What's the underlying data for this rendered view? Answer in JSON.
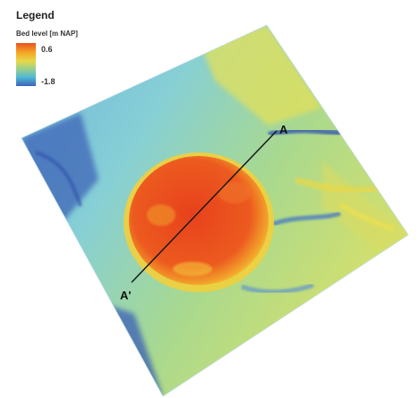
{
  "legend": {
    "title": "Legend",
    "subtitle": "Bed level [m NAP]",
    "max_label": "0.6",
    "min_label": "-1.8",
    "max_value": 0.6,
    "min_value": -1.8,
    "colors": [
      "#e8541f",
      "#f5a623",
      "#e6d84a",
      "#9bd08a",
      "#4fb7d6",
      "#3a63b8"
    ]
  },
  "profile_line": {
    "start_label": "A",
    "end_label": "A'"
  },
  "map_colors": {
    "mound": "#e5461e",
    "mound_edge": "#f3c038",
    "background": "#7cc6d9",
    "deep": "#3f63b3",
    "shallow": "#dfe05a",
    "line": "#1a1a1a"
  }
}
